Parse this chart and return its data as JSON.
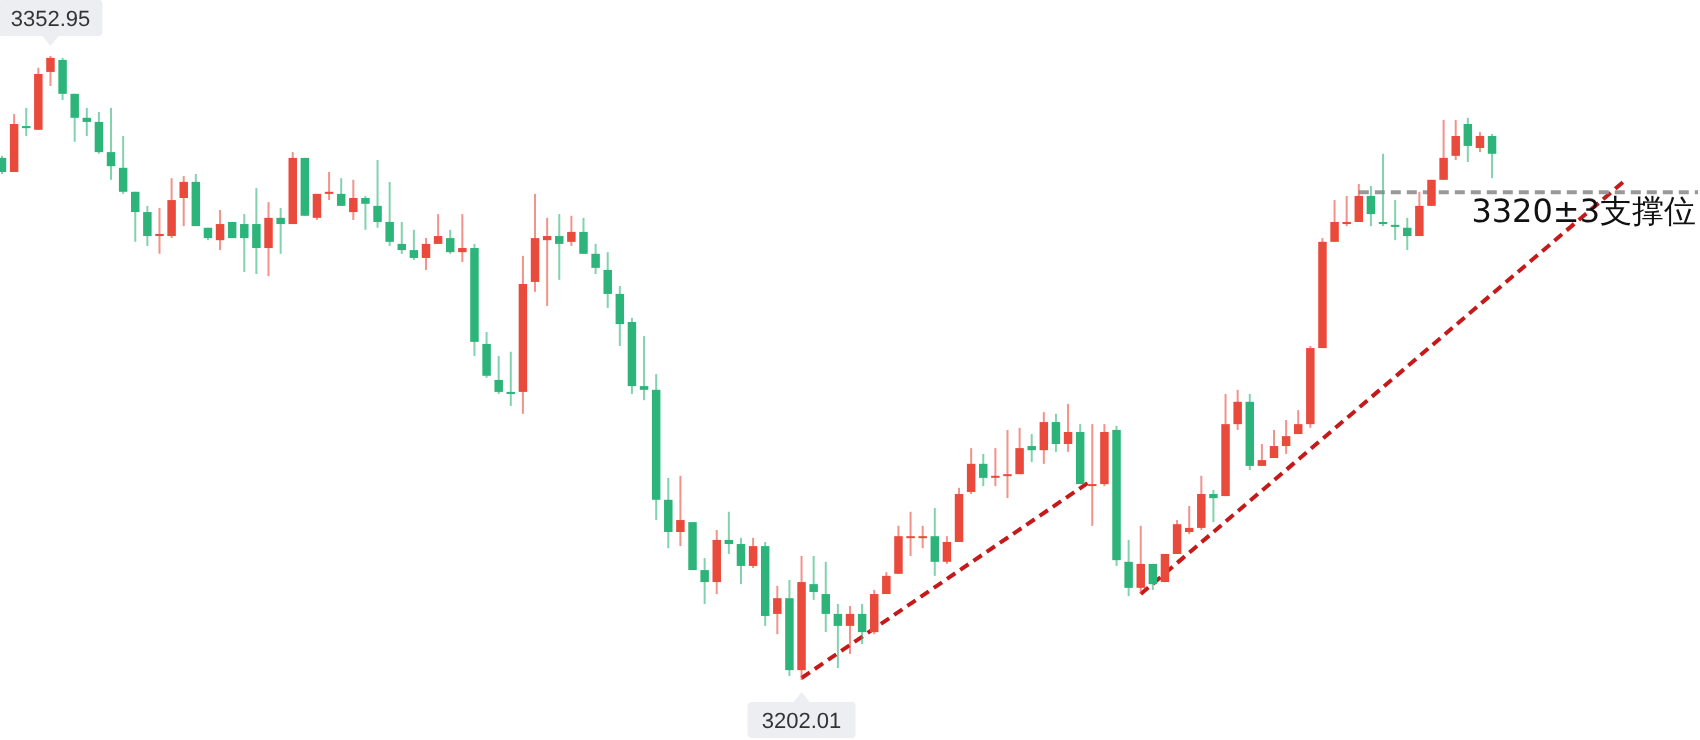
{
  "chart_data": {
    "type": "candlestick",
    "categories": [
      null,
      null,
      null,
      null,
      null,
      null,
      null,
      null,
      null,
      null,
      null,
      null,
      null,
      null,
      null,
      null,
      null,
      null,
      null,
      null,
      null,
      null,
      null,
      null,
      null,
      null,
      null,
      null,
      null,
      null,
      null,
      null,
      null,
      null,
      null,
      null,
      null,
      null,
      null,
      null,
      null,
      null,
      null,
      null,
      null,
      null,
      null,
      null,
      null,
      null,
      null,
      null,
      null,
      null,
      null,
      null,
      null,
      null,
      null,
      null,
      null,
      null,
      null,
      null,
      null,
      null,
      null,
      null,
      null,
      null,
      null,
      null,
      null,
      null,
      null,
      null,
      null,
      null,
      null,
      null,
      null,
      null,
      null,
      null,
      null,
      null,
      null,
      null,
      null,
      null,
      null,
      null,
      null,
      null,
      null,
      null,
      null,
      null,
      null,
      null,
      null,
      null,
      null,
      null,
      null,
      null,
      null,
      null,
      null,
      null,
      null,
      null,
      null,
      null,
      null,
      null,
      null,
      null,
      null,
      null,
      null,
      null,
      null,
      null,
      null,
      null,
      null,
      null,
      null,
      null,
      null,
      null,
      null,
      null,
      null,
      null,
      null,
      null,
      null,
      null,
      null
    ],
    "ohlc": [
      [
        3328.3,
        3328.8,
        3324.4,
        3324.9
      ],
      [
        3324.9,
        3338.9,
        3324.9,
        3336.5
      ],
      [
        3336.0,
        3340.4,
        3333.6,
        3335.5
      ],
      [
        3335.1,
        3350.1,
        3335.1,
        3348.6
      ],
      [
        3349.1,
        3352.95,
        3345.7,
        3352.5
      ],
      [
        3352.0,
        3352.5,
        3342.3,
        3343.8
      ],
      [
        3343.8,
        3343.8,
        3332.2,
        3338.0
      ],
      [
        3338.0,
        3340.4,
        3333.6,
        3337.0
      ],
      [
        3337.0,
        3339.4,
        3329.3,
        3329.7
      ],
      [
        3329.7,
        3340.4,
        3323.0,
        3326.3
      ],
      [
        3325.9,
        3333.6,
        3319.6,
        3320.1
      ],
      [
        3320.1,
        3320.1,
        3308.0,
        3315.2
      ],
      [
        3315.2,
        3316.7,
        3307.0,
        3309.4
      ],
      [
        3309.4,
        3316.2,
        3305.1,
        3309.9
      ],
      [
        3309.4,
        3323.4,
        3308.9,
        3318.1
      ],
      [
        3318.6,
        3323.9,
        3311.8,
        3322.5
      ],
      [
        3322.5,
        3324.4,
        3311.8,
        3311.8
      ],
      [
        3311.4,
        3311.4,
        3308.4,
        3308.9
      ],
      [
        3308.4,
        3315.7,
        3306.0,
        3312.3
      ],
      [
        3312.8,
        3312.8,
        3308.9,
        3308.9
      ],
      [
        3312.3,
        3314.7,
        3300.7,
        3308.9
      ],
      [
        3312.3,
        3321.0,
        3300.2,
        3306.5
      ],
      [
        3306.5,
        3317.6,
        3299.7,
        3313.8
      ],
      [
        3313.8,
        3316.2,
        3305.1,
        3312.3
      ],
      [
        3312.3,
        3329.7,
        3312.3,
        3328.3
      ],
      [
        3328.3,
        3328.3,
        3314.3,
        3314.3
      ],
      [
        3313.8,
        3319.6,
        3313.3,
        3319.6
      ],
      [
        3319.6,
        3324.9,
        3318.1,
        3320.1
      ],
      [
        3319.6,
        3323.4,
        3316.7,
        3316.7
      ],
      [
        3315.2,
        3323.0,
        3313.3,
        3318.6
      ],
      [
        3318.6,
        3319.1,
        3310.9,
        3317.2
      ],
      [
        3316.7,
        3327.8,
        3311.4,
        3312.8
      ],
      [
        3312.8,
        3322.5,
        3307.0,
        3308.0
      ],
      [
        3307.5,
        3312.8,
        3305.1,
        3306.0
      ],
      [
        3306.0,
        3310.9,
        3303.6,
        3304.1
      ],
      [
        3304.1,
        3308.9,
        3301.2,
        3307.5
      ],
      [
        3307.5,
        3314.7,
        3307.5,
        3309.4
      ],
      [
        3308.9,
        3310.9,
        3305.1,
        3305.5
      ],
      [
        3305.5,
        3314.7,
        3303.1,
        3306.5
      ],
      [
        3306.5,
        3307.5,
        3280.4,
        3283.8
      ],
      [
        3283.3,
        3286.2,
        3275.1,
        3275.6
      ],
      [
        3274.6,
        3280.4,
        3271.2,
        3271.7
      ],
      [
        3271.7,
        3281.4,
        3268.3,
        3271.2
      ],
      [
        3271.7,
        3304.6,
        3266.4,
        3297.8
      ],
      [
        3298.3,
        3319.6,
        3295.9,
        3308.9
      ],
      [
        3308.4,
        3313.8,
        3292.5,
        3309.4
      ],
      [
        3309.4,
        3314.7,
        3298.8,
        3307.5
      ],
      [
        3308.0,
        3314.3,
        3307.0,
        3310.4
      ],
      [
        3310.4,
        3313.8,
        3305.1,
        3305.1
      ],
      [
        3305.1,
        3307.5,
        3300.2,
        3301.7
      ],
      [
        3301.2,
        3305.5,
        3292.0,
        3295.4
      ],
      [
        3295.4,
        3297.3,
        3282.8,
        3288.1
      ],
      [
        3288.6,
        3289.6,
        3271.2,
        3273.1
      ],
      [
        3273.1,
        3285.2,
        3269.7,
        3272.2
      ],
      [
        3272.2,
        3276.0,
        3240.7,
        3245.6
      ],
      [
        3245.6,
        3250.9,
        3233.9,
        3237.8
      ],
      [
        3237.8,
        3251.4,
        3234.4,
        3240.7
      ],
      [
        3240.2,
        3240.2,
        3228.6,
        3228.6
      ],
      [
        3228.6,
        3231.5,
        3220.4,
        3225.7
      ],
      [
        3225.7,
        3238.3,
        3222.8,
        3235.9
      ],
      [
        3235.9,
        3242.7,
        3232.5,
        3234.9
      ],
      [
        3234.9,
        3236.4,
        3225.2,
        3229.6
      ],
      [
        3229.6,
        3236.4,
        3229.1,
        3234.4
      ],
      [
        3234.4,
        3235.4,
        3215.1,
        3217.5
      ],
      [
        3218.0,
        3224.8,
        3213.1,
        3221.8
      ],
      [
        3221.8,
        3226.2,
        3203.0,
        3204.4
      ],
      [
        3204.4,
        3232.0,
        3202.01,
        3225.7
      ],
      [
        3225.2,
        3232.0,
        3221.4,
        3223.3
      ],
      [
        3222.8,
        3230.6,
        3213.6,
        3218.0
      ],
      [
        3218.0,
        3220.4,
        3204.9,
        3215.1
      ],
      [
        3215.1,
        3219.9,
        3208.3,
        3218.0
      ],
      [
        3218.0,
        3220.4,
        3210.7,
        3213.6
      ],
      [
        3213.6,
        3223.8,
        3213.1,
        3222.8
      ],
      [
        3222.8,
        3228.1,
        3222.8,
        3227.2
      ],
      [
        3227.7,
        3239.3,
        3227.7,
        3236.8
      ],
      [
        3236.6,
        3242.7,
        3232.0,
        3236.8
      ],
      [
        3236.6,
        3239.3,
        3233.9,
        3236.8
      ],
      [
        3236.8,
        3243.6,
        3227.2,
        3230.6
      ],
      [
        3230.6,
        3236.8,
        3230.1,
        3235.4
      ],
      [
        3235.4,
        3248.5,
        3235.4,
        3247.0
      ],
      [
        3247.5,
        3258.1,
        3247.0,
        3254.3
      ],
      [
        3254.3,
        3256.7,
        3248.9,
        3250.9
      ],
      [
        3251.1,
        3258.1,
        3248.9,
        3251.4
      ],
      [
        3251.4,
        3262.5,
        3246.0,
        3251.8
      ],
      [
        3251.8,
        3263.0,
        3251.8,
        3258.1
      ],
      [
        3258.6,
        3261.5,
        3254.7,
        3257.6
      ],
      [
        3257.6,
        3266.8,
        3254.3,
        3264.4
      ],
      [
        3264.4,
        3266.4,
        3257.2,
        3259.1
      ],
      [
        3259.1,
        3268.8,
        3257.2,
        3262.0
      ],
      [
        3262.0,
        3263.9,
        3249.4,
        3249.4
      ],
      [
        3249.2,
        3263.9,
        3239.3,
        3249.4
      ],
      [
        3249.4,
        3263.9,
        3248.9,
        3262.0
      ],
      [
        3262.5,
        3263.5,
        3229.6,
        3231.0
      ],
      [
        3230.6,
        3235.9,
        3222.3,
        3224.3
      ],
      [
        3224.3,
        3239.3,
        3222.8,
        3230.1
      ],
      [
        3230.1,
        3230.1,
        3223.8,
        3225.2
      ],
      [
        3225.7,
        3232.5,
        3225.7,
        3232.5
      ],
      [
        3232.5,
        3240.7,
        3232.5,
        3239.7
      ],
      [
        3237.8,
        3244.1,
        3237.3,
        3238.8
      ],
      [
        3238.8,
        3251.4,
        3238.3,
        3247.0
      ],
      [
        3247.0,
        3248.0,
        3240.2,
        3246.0
      ],
      [
        3246.5,
        3271.2,
        3246.5,
        3263.9
      ],
      [
        3263.9,
        3272.2,
        3262.5,
        3269.3
      ],
      [
        3269.3,
        3271.2,
        3252.8,
        3253.8
      ],
      [
        3253.8,
        3259.1,
        3253.8,
        3255.2
      ],
      [
        3255.7,
        3262.5,
        3255.7,
        3258.6
      ],
      [
        3258.6,
        3264.9,
        3256.7,
        3261.0
      ],
      [
        3261.5,
        3267.3,
        3261.5,
        3263.9
      ],
      [
        3263.9,
        3282.8,
        3263.0,
        3282.3
      ],
      [
        3282.3,
        3308.9,
        3282.3,
        3308.0
      ],
      [
        3308.0,
        3318.1,
        3308.0,
        3312.8
      ],
      [
        3312.3,
        3319.1,
        3311.8,
        3312.8
      ],
      [
        3312.8,
        3322.0,
        3312.8,
        3319.1
      ],
      [
        3319.1,
        3321.5,
        3311.8,
        3314.7
      ],
      [
        3312.8,
        3329.3,
        3311.8,
        3312.3
      ],
      [
        3312.1,
        3318.1,
        3308.4,
        3311.8
      ],
      [
        3311.4,
        3313.8,
        3306.0,
        3309.4
      ],
      [
        3309.4,
        3320.1,
        3309.4,
        3316.7
      ],
      [
        3316.7,
        3323.0,
        3316.7,
        3323.0
      ],
      [
        3323.0,
        3337.5,
        3323.0,
        3328.3
      ],
      [
        3328.8,
        3337.5,
        3327.8,
        3333.6
      ],
      [
        3336.5,
        3338.0,
        3327.3,
        3331.2
      ],
      [
        3330.7,
        3334.6,
        3329.7,
        3333.6
      ],
      [
        3333.6,
        3334.1,
        3323.4,
        3329.3
      ],
      null,
      null,
      null,
      null,
      null,
      null,
      null,
      null,
      null,
      null,
      null,
      null,
      null,
      null,
      null,
      null,
      null
    ],
    "series": [
      {
        "type": "line",
        "color": "#c41a1a",
        "line_style": "dashed",
        "values": [
          null,
          null,
          null,
          null,
          null,
          null,
          null,
          null,
          null,
          null,
          null,
          null,
          null,
          null,
          null,
          null,
          null,
          null,
          null,
          null,
          null,
          null,
          null,
          null,
          null,
          null,
          null,
          null,
          null,
          null,
          null,
          null,
          null,
          null,
          null,
          null,
          null,
          null,
          null,
          null,
          null,
          null,
          null,
          null,
          null,
          null,
          null,
          null,
          null,
          null,
          null,
          null,
          null,
          null,
          null,
          null,
          null,
          null,
          null,
          null,
          null,
          null,
          null,
          null,
          null,
          null,
          3202.5,
          null,
          null,
          null,
          null,
          null,
          null,
          null,
          null,
          null,
          null,
          null,
          null,
          null,
          null,
          null,
          null,
          null,
          null,
          null,
          null,
          null,
          null,
          null,
          3250.4,
          null,
          null,
          null,
          null,
          null,
          null,
          null,
          null,
          null,
          null,
          null,
          null,
          null,
          null,
          null,
          null,
          null,
          null,
          null,
          null,
          null,
          null,
          null,
          null,
          null,
          null,
          null,
          null,
          null,
          null,
          null,
          null,
          null,
          null,
          null,
          null,
          null,
          null,
          null,
          null,
          null,
          null,
          null,
          null,
          null,
          null,
          null,
          null,
          null,
          null
        ]
      },
      {
        "type": "line",
        "color": "#c41a1a",
        "line_style": "dashed",
        "values": [
          null,
          null,
          null,
          null,
          null,
          null,
          null,
          null,
          null,
          null,
          null,
          null,
          null,
          null,
          null,
          null,
          null,
          null,
          null,
          null,
          null,
          null,
          null,
          null,
          null,
          null,
          null,
          null,
          null,
          null,
          null,
          null,
          null,
          null,
          null,
          null,
          null,
          null,
          null,
          null,
          null,
          null,
          null,
          null,
          null,
          null,
          null,
          null,
          null,
          null,
          null,
          null,
          null,
          null,
          null,
          null,
          null,
          null,
          null,
          null,
          null,
          null,
          null,
          null,
          null,
          null,
          null,
          null,
          null,
          null,
          null,
          null,
          null,
          null,
          null,
          null,
          null,
          null,
          null,
          null,
          null,
          null,
          null,
          null,
          null,
          null,
          null,
          null,
          null,
          null,
          null,
          null,
          null,
          null,
          3222.8,
          null,
          null,
          null,
          null,
          null,
          null,
          null,
          null,
          null,
          null,
          null,
          null,
          null,
          null,
          null,
          null,
          null,
          null,
          null,
          null,
          null,
          null,
          null,
          null,
          null,
          null,
          null,
          null,
          null,
          null,
          null,
          null,
          null,
          null,
          null,
          null,
          null,
          null,
          null,
          3322.9,
          null,
          null,
          null,
          null,
          null,
          null
        ]
      },
      {
        "type": "line",
        "color": "#999999",
        "line_style": "dashed",
        "values": [
          null,
          null,
          null,
          null,
          null,
          null,
          null,
          null,
          null,
          null,
          null,
          null,
          null,
          null,
          null,
          null,
          null,
          null,
          null,
          null,
          null,
          null,
          null,
          null,
          null,
          null,
          null,
          null,
          null,
          null,
          null,
          null,
          null,
          null,
          null,
          null,
          null,
          null,
          null,
          null,
          null,
          null,
          null,
          null,
          null,
          null,
          null,
          null,
          null,
          null,
          null,
          null,
          null,
          null,
          null,
          null,
          null,
          null,
          null,
          null,
          null,
          null,
          null,
          null,
          null,
          null,
          null,
          null,
          null,
          null,
          null,
          null,
          null,
          null,
          null,
          null,
          null,
          null,
          null,
          null,
          null,
          null,
          null,
          null,
          null,
          null,
          null,
          null,
          null,
          null,
          null,
          null,
          null,
          null,
          null,
          null,
          null,
          null,
          null,
          null,
          null,
          null,
          null,
          null,
          null,
          null,
          null,
          null,
          null,
          null,
          null,
          null,
          3320,
          null,
          null,
          null,
          null,
          null,
          null,
          null,
          null,
          null,
          null,
          null,
          null,
          null,
          null,
          null,
          null,
          null,
          null,
          null,
          null,
          null,
          null,
          null,
          null,
          null,
          null,
          null,
          3320
        ]
      }
    ],
    "annotations": [
      {
        "text": "3352.95",
        "y": 3352.95
      },
      {
        "text": "3202.01",
        "y": 3202.01
      },
      {
        "text": "3320±3支撑位",
        "y": 3315.7
      }
    ]
  }
}
